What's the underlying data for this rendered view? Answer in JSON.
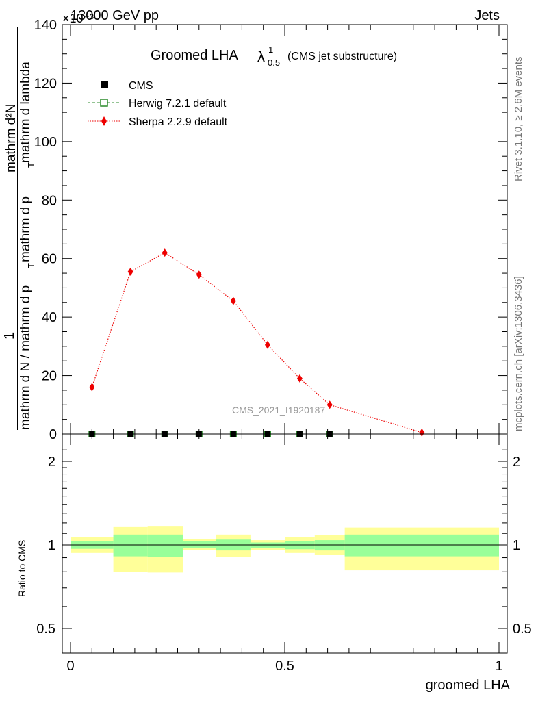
{
  "header": {
    "energy_label": "13000 GeV pp",
    "process_label": "Jets",
    "exponent_label": "×10⁻³"
  },
  "side_labels": {
    "rivet": "Rivet 3.1.10, ≥ 2.6M events",
    "mcplots": "mcplots.cern.ch [arXiv:1306.3436]"
  },
  "chart_data": [
    {
      "type": "line",
      "title": "Groomed LHA",
      "title_lambda": "λ",
      "title_sup": "1",
      "title_sub": "0.5",
      "subtitle": "(CMS jet substructure)",
      "analysis_tag": "CMS_2021_I1920187",
      "ylabel_numerator": "1",
      "ylabel_denominator": "mathrm d N / mathrm d p_T mathrm d p_T mathrm d lambda",
      "ylabel_top": "mathrm d²N",
      "ylabel_main": "mathrm d N / mathrm d p",
      "ylabel_sub": "T",
      "ylabel_rest": "mathrm d p",
      "ylabel_rest2": "mathrm d lambda",
      "ylim": [
        0,
        140
      ],
      "yticks": [
        0,
        20,
        40,
        60,
        80,
        100,
        120,
        140
      ],
      "xlim": [
        0,
        1
      ],
      "legend": [
        {
          "name": "CMS",
          "marker": "square-filled",
          "color": "#000000"
        },
        {
          "name": "Herwig 7.2.1 default",
          "marker": "square-open",
          "color": "#2a8a2a"
        },
        {
          "name": "Sherpa 2.2.9 default",
          "marker": "diamond",
          "color": "#ee0000"
        }
      ],
      "series": [
        {
          "name": "CMS",
          "x": [
            0.05,
            0.14,
            0.22,
            0.3,
            0.38,
            0.46,
            0.535,
            0.605
          ],
          "y": [
            0,
            0,
            0,
            0,
            0,
            0,
            0,
            0
          ]
        },
        {
          "name": "Herwig 7.2.1 default",
          "x": [
            0.05,
            0.14,
            0.22,
            0.3,
            0.38,
            0.46,
            0.535,
            0.605
          ],
          "y": [
            0,
            0,
            0,
            0,
            0,
            0,
            0,
            0
          ]
        },
        {
          "name": "Sherpa 2.2.9 default",
          "x": [
            0.05,
            0.14,
            0.22,
            0.3,
            0.38,
            0.46,
            0.535,
            0.605,
            0.82
          ],
          "y": [
            16,
            55.5,
            62,
            54.5,
            45.5,
            30.5,
            19,
            10,
            0.5
          ]
        }
      ]
    },
    {
      "type": "area",
      "ylabel": "Ratio to CMS",
      "xlabel": "groomed LHA",
      "ylim": [
        0.4,
        2.5
      ],
      "yscale": "log",
      "yticks": [
        0.5,
        1,
        2
      ],
      "ytick_labels": [
        "0.5",
        "1",
        "2"
      ],
      "xlim": [
        0,
        1
      ],
      "xticks": [
        0,
        0.5,
        1
      ],
      "xtick_labels": [
        "0",
        "0.5",
        "1"
      ],
      "bins": [
        {
          "lo": 0.0,
          "hi": 0.1,
          "inner": [
            0.968,
            1.03
          ],
          "outer": [
            0.935,
            1.065
          ]
        },
        {
          "lo": 0.1,
          "hi": 0.18,
          "inner": [
            0.91,
            1.09
          ],
          "outer": [
            0.8,
            1.16
          ]
        },
        {
          "lo": 0.18,
          "hi": 0.262,
          "inner": [
            0.905,
            1.09
          ],
          "outer": [
            0.795,
            1.165
          ]
        },
        {
          "lo": 0.262,
          "hi": 0.34,
          "inner": [
            0.975,
            1.03
          ],
          "outer": [
            0.96,
            1.05
          ]
        },
        {
          "lo": 0.34,
          "hi": 0.42,
          "inner": [
            0.955,
            1.045
          ],
          "outer": [
            0.905,
            1.09
          ]
        },
        {
          "lo": 0.42,
          "hi": 0.5,
          "inner": [
            0.975,
            1.02
          ],
          "outer": [
            0.96,
            1.04
          ]
        },
        {
          "lo": 0.5,
          "hi": 0.57,
          "inner": [
            0.965,
            1.03
          ],
          "outer": [
            0.935,
            1.065
          ]
        },
        {
          "lo": 0.57,
          "hi": 0.64,
          "inner": [
            0.955,
            1.04
          ],
          "outer": [
            0.92,
            1.085
          ]
        },
        {
          "lo": 0.64,
          "hi": 1.0,
          "inner": [
            0.91,
            1.09
          ],
          "outer": [
            0.81,
            1.155
          ]
        }
      ],
      "colors": {
        "inner": "#99ff99",
        "outer": "#ffff99"
      }
    }
  ]
}
